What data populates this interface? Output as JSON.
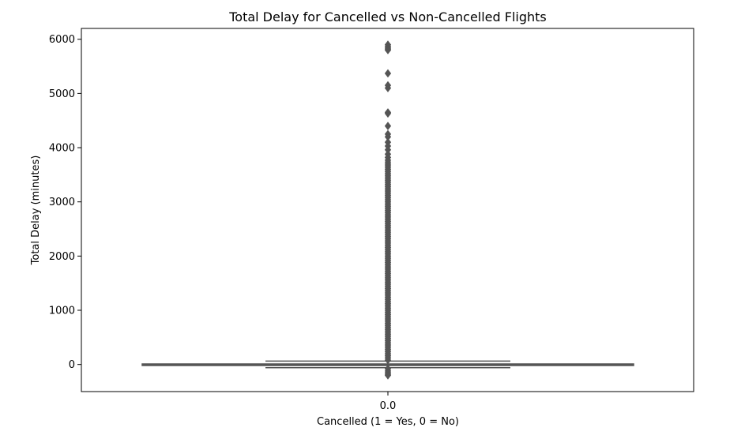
{
  "chart_data": {
    "type": "box",
    "title": "Total Delay for Cancelled vs Non-Cancelled Flights",
    "xlabel": "Cancelled (1 = Yes, 0 = No)",
    "ylabel": "Total Delay (minutes)",
    "categories": [
      "0.0"
    ],
    "ylim": [
      -500,
      6200
    ],
    "yticks": [
      "0",
      "1000",
      "2000",
      "3000",
      "4000",
      "5000",
      "6000"
    ],
    "grid": false,
    "box": {
      "category": "0.0",
      "q1": -5,
      "median": 0,
      "q3": 10,
      "whisker_low": -60,
      "whisker_high": 62,
      "color": "#555555"
    },
    "outliers": [
      5900,
      5870,
      5840,
      5820,
      5800,
      5370,
      5150,
      5100,
      4650,
      4630,
      4400,
      4250,
      4200,
      4100,
      4030,
      3960,
      3880,
      3820,
      3770,
      3720,
      3680,
      3640,
      3600,
      3560,
      3520,
      3480,
      3440,
      3400,
      3360,
      3320,
      3280,
      3240,
      3200,
      3160,
      3120,
      3080,
      3040,
      3000,
      2960,
      2920,
      2880,
      2840,
      2800,
      2760,
      2720,
      2680,
      2640,
      2600,
      2560,
      2520,
      2480,
      2440,
      2400,
      2360,
      2320,
      2280,
      2240,
      2200,
      2160,
      2120,
      2080,
      2040,
      2000,
      1960,
      1920,
      1880,
      1840,
      1800,
      1760,
      1720,
      1680,
      1640,
      1600,
      1560,
      1520,
      1480,
      1440,
      1400,
      1360,
      1320,
      1280,
      1240,
      1200,
      1160,
      1120,
      1080,
      1040,
      1000,
      960,
      920,
      880,
      840,
      800,
      760,
      720,
      680,
      640,
      600,
      560,
      520,
      480,
      440,
      400,
      360,
      320,
      280,
      240,
      200,
      160,
      120,
      80,
      -80,
      -120,
      -150,
      -180,
      -200
    ]
  }
}
